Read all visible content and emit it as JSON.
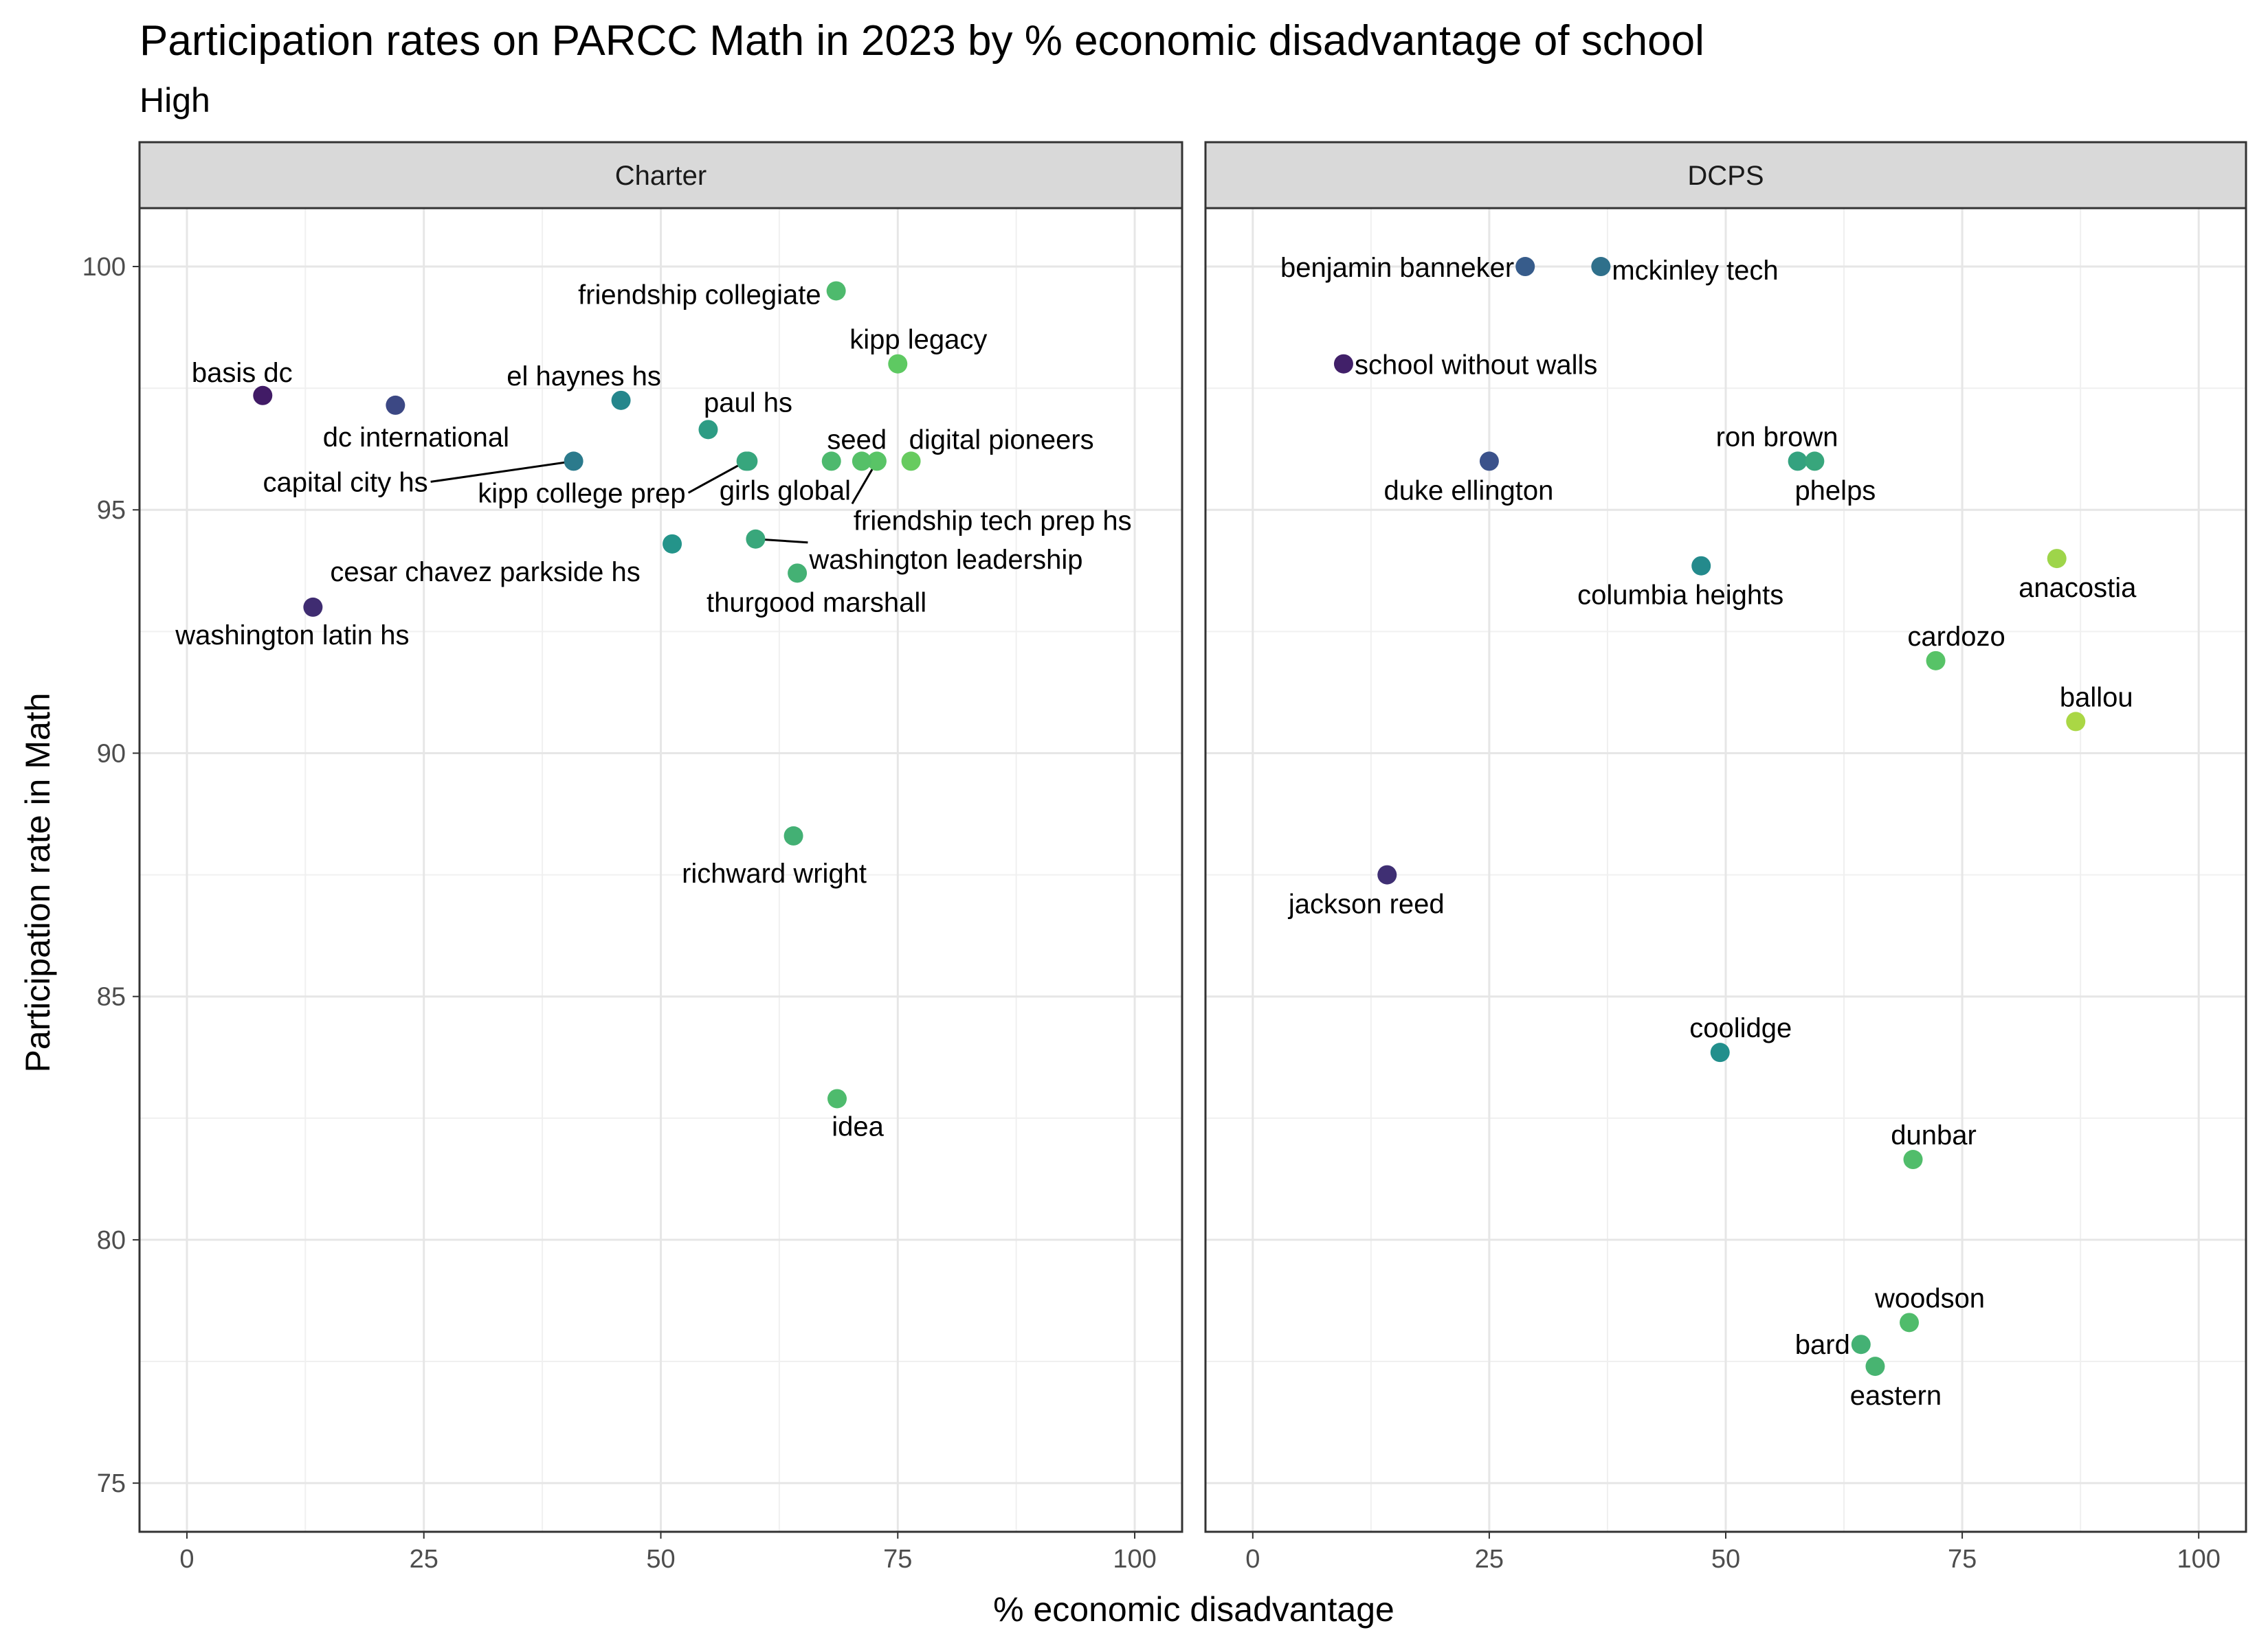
{
  "chart_data": {
    "type": "scatter",
    "title": "Participation rates on PARCC Math in 2023 by % economic disadvantage of school",
    "subtitle": "High",
    "xlabel": "% economic disadvantage",
    "ylabel": "Participation rate in Math",
    "xlim": [
      -5,
      105
    ],
    "ylim": [
      74,
      101.2
    ],
    "xticks": [
      0,
      25,
      50,
      75,
      100
    ],
    "yticks": [
      75,
      80,
      85,
      90,
      95,
      100
    ],
    "grid": true,
    "color_scale": "viridis",
    "color_range": [
      0,
      100
    ],
    "panels": [
      {
        "label": "Charter",
        "points": [
          {
            "label": "basis dc",
            "x": 8,
            "y": 97.35
          },
          {
            "label": "dc international",
            "x": 22,
            "y": 97.15
          },
          {
            "label": "el haynes hs",
            "x": 45.8,
            "y": 97.25
          },
          {
            "label": "capital city hs",
            "x": 40.8,
            "y": 96.0
          },
          {
            "label": "kipp college prep",
            "x": 59,
            "y": 96.0
          },
          {
            "label": "paul hs",
            "x": 55,
            "y": 96.65
          },
          {
            "label": "girls global",
            "x": 59.2,
            "y": 96.0
          },
          {
            "label": "seed",
            "x": 68,
            "y": 96.0
          },
          {
            "label": "friendship tech prep hs",
            "x": 72.8,
            "y": 96.0
          },
          {
            "label": "digital pioneers",
            "x": 76.4,
            "y": 96.0
          },
          {
            "label": "",
            "x": 71.2,
            "y": 96.0
          },
          {
            "label": "friendship collegiate",
            "x": 68.5,
            "y": 99.5
          },
          {
            "label": "kipp legacy",
            "x": 75,
            "y": 98.0
          },
          {
            "label": "cesar chavez parkside hs",
            "x": 51.2,
            "y": 94.3
          },
          {
            "label": "washington leadership",
            "x": 60,
            "y": 94.4
          },
          {
            "label": "thurgood marshall",
            "x": 64.4,
            "y": 93.7
          },
          {
            "label": "washington latin hs",
            "x": 13.3,
            "y": 93.0
          },
          {
            "label": "richward wright",
            "x": 64,
            "y": 88.3
          },
          {
            "label": "idea",
            "x": 68.6,
            "y": 82.9
          }
        ]
      },
      {
        "label": "DCPS",
        "points": [
          {
            "label": "benjamin banneker",
            "x": 28.8,
            "y": 100.0
          },
          {
            "label": "mckinley tech",
            "x": 36.8,
            "y": 100.0
          },
          {
            "label": "school without walls",
            "x": 9.6,
            "y": 98.0
          },
          {
            "label": "duke ellington",
            "x": 25,
            "y": 96.0
          },
          {
            "label": "ron brown",
            "x": 57.6,
            "y": 96.0
          },
          {
            "label": "phelps",
            "x": 59.4,
            "y": 96.0
          },
          {
            "label": "columbia heights",
            "x": 47.4,
            "y": 93.85
          },
          {
            "label": "anacostia",
            "x": 85,
            "y": 94.0
          },
          {
            "label": "cardozo",
            "x": 72.2,
            "y": 91.9
          },
          {
            "label": "ballou",
            "x": 87,
            "y": 90.65
          },
          {
            "label": "jackson reed",
            "x": 14.2,
            "y": 87.5
          },
          {
            "label": "coolidge",
            "x": 49.4,
            "y": 83.85
          },
          {
            "label": "dunbar",
            "x": 69.8,
            "y": 81.65
          },
          {
            "label": "woodson",
            "x": 69.4,
            "y": 78.3
          },
          {
            "label": "bard",
            "x": 64.3,
            "y": 77.85
          },
          {
            "label": "eastern",
            "x": 65.8,
            "y": 77.4
          }
        ]
      }
    ]
  }
}
